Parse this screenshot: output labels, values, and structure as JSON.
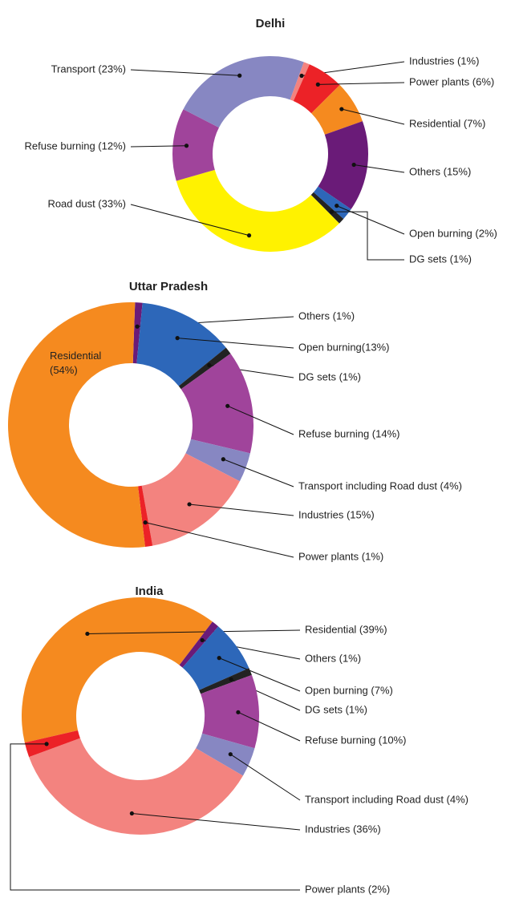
{
  "chart_data": [
    {
      "type": "pie",
      "donut": true,
      "title": "Delhi",
      "categories": [
        "Industries (1%)",
        "Power plants (6%)",
        "Residential (7%)",
        "Others (15%)",
        "Open burning (2%)",
        "DG sets (1%)",
        "Road dust (33%)",
        "Refuse burning (12%)",
        "Transport (23%)"
      ],
      "values": [
        1,
        6,
        7,
        15,
        2,
        1,
        33,
        12,
        23
      ],
      "colors": [
        "#f3837f",
        "#ec2227",
        "#f58a1f",
        "#6a1b78",
        "#2d67b9",
        "#222222",
        "#fff200",
        "#a0449b",
        "#8787c2"
      ]
    },
    {
      "type": "pie",
      "donut": true,
      "title": "Uttar Pradesh",
      "categories": [
        "Others (1%)",
        "Open burning(13%)",
        "DG sets (1%)",
        "Refuse burning (14%)",
        "Transport including Road dust (4%)",
        "Industries (15%)",
        "Power plants (1%)",
        "Residential\n(54%)"
      ],
      "values": [
        1,
        13,
        1,
        14,
        4,
        15,
        1,
        54
      ],
      "colors": [
        "#6a1b78",
        "#2d67b9",
        "#222222",
        "#a0449b",
        "#8787c2",
        "#f3837f",
        "#ec2227",
        "#f58a1f"
      ]
    },
    {
      "type": "pie",
      "donut": true,
      "title": "India",
      "categories": [
        "Residential (39%)",
        "Others (1%)",
        "Open burning (7%)",
        "DG sets (1%)",
        "Refuse burning (10%)",
        "Transport including Road dust (4%)",
        "Industries (36%)",
        "Power plants (2%)"
      ],
      "values": [
        39,
        1,
        7,
        1,
        10,
        4,
        36,
        2
      ],
      "colors": [
        "#f58a1f",
        "#6a1b78",
        "#2d67b9",
        "#222222",
        "#a0449b",
        "#8787c2",
        "#f3837f",
        "#ec2227"
      ]
    }
  ]
}
